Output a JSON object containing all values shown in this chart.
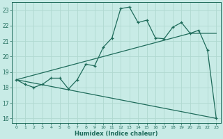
{
  "xlabel": "Humidex (Indice chaleur)",
  "bg_color": "#c8ebe6",
  "grid_color": "#b0d8d0",
  "line_color": "#1e6b5a",
  "xlim": [
    -0.5,
    23.5
  ],
  "ylim": [
    15.7,
    23.5
  ],
  "yticks": [
    16,
    17,
    18,
    19,
    20,
    21,
    22,
    23
  ],
  "xticks": [
    0,
    1,
    2,
    3,
    4,
    5,
    6,
    7,
    8,
    9,
    10,
    11,
    12,
    13,
    14,
    15,
    16,
    17,
    18,
    19,
    20,
    21,
    22,
    23
  ],
  "curve1_x": [
    0,
    1,
    2,
    3,
    4,
    5,
    6,
    7,
    8,
    9,
    10,
    11,
    12,
    13,
    14,
    15,
    16,
    17,
    18,
    19,
    20,
    21,
    22,
    23
  ],
  "curve1_y": [
    18.5,
    18.2,
    18.0,
    18.2,
    18.6,
    18.6,
    17.9,
    18.5,
    19.5,
    19.4,
    20.6,
    21.2,
    23.1,
    23.2,
    22.2,
    22.35,
    21.2,
    21.15,
    21.9,
    22.2,
    21.5,
    21.7,
    20.4,
    16.0
  ],
  "curve2_x": [
    0,
    23
  ],
  "curve2_y": [
    18.5,
    16.0
  ],
  "curve3_x": [
    0,
    20,
    23
  ],
  "curve3_y": [
    18.5,
    21.5,
    21.5
  ]
}
